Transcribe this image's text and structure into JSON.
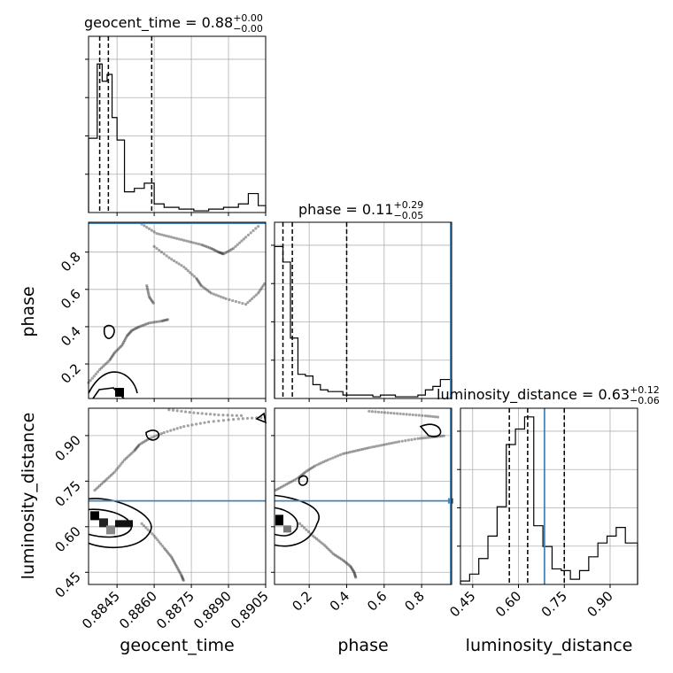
{
  "chart_data": {
    "type": "corner",
    "parameters": [
      "geocent_time",
      "phase",
      "luminosity_distance"
    ],
    "axis_labels": {
      "x": [
        "geocent_time",
        "phase",
        "luminosity_distance"
      ],
      "y": [
        "phase",
        "luminosity_distance"
      ]
    },
    "titles": [
      {
        "text": "geocent_time = 0.88",
        "sup": "+0.00",
        "sub": "−0.00"
      },
      {
        "text": "phase = 0.11",
        "sup": "+0.29",
        "sub": "−0.05"
      },
      {
        "text": "luminosity_distance = 0.63",
        "sup": "+0.12",
        "sub": "−0.06"
      }
    ],
    "ranges": {
      "geocent_time": [
        0.88335,
        0.8905
      ],
      "phase": [
        0.015,
        0.96
      ],
      "luminosity_distance": [
        0.41,
        0.99
      ]
    },
    "ticks": {
      "geocent_time": {
        "values": [
          0.8845,
          0.886,
          0.8875,
          0.889,
          0.8905
        ],
        "labels": [
          "0.8845",
          "0.8860",
          "0.8875",
          "0.8890",
          "0.8905"
        ]
      },
      "phase": {
        "values": [
          0.2,
          0.4,
          0.6,
          0.8
        ],
        "labels": [
          "0.2",
          "0.4",
          "0.6",
          "0.8"
        ]
      },
      "luminosity_distance": {
        "values": [
          0.45,
          0.6,
          0.75,
          0.9
        ],
        "labels": [
          "0.45",
          "0.60",
          "0.75",
          "0.90"
        ]
      }
    },
    "truths": {
      "geocent_time": null,
      "phase": 0.955,
      "luminosity_distance": 0.685
    },
    "quantiles": {
      "geocent_time": [
        0.8838,
        0.88415,
        0.8859
      ],
      "phase": [
        0.06,
        0.11,
        0.4
      ],
      "luminosity_distance": [
        0.57,
        0.63,
        0.75
      ]
    },
    "histograms": {
      "geocent_time": {
        "edges": [
          0.88335,
          0.8837,
          0.8839,
          0.8841,
          0.8843,
          0.8845,
          0.8848,
          0.8852,
          0.8856,
          0.886,
          0.8864,
          0.887,
          0.8876,
          0.8882,
          0.8888,
          0.8894,
          0.8898,
          0.8902,
          0.8905
        ],
        "counts": [
          0.43,
          0.86,
          0.76,
          0.8,
          0.55,
          0.42,
          0.12,
          0.14,
          0.17,
          0.05,
          0.03,
          0.02,
          0.01,
          0.02,
          0.03,
          0.05,
          0.11,
          0.04
        ]
      },
      "phase": {
        "edges": [
          0.015,
          0.06,
          0.1,
          0.14,
          0.18,
          0.22,
          0.26,
          0.3,
          0.34,
          0.38,
          0.42,
          0.46,
          0.5,
          0.54,
          0.58,
          0.62,
          0.66,
          0.7,
          0.74,
          0.78,
          0.82,
          0.86,
          0.9,
          0.96
        ],
        "counts": [
          0.88,
          0.79,
          0.35,
          0.14,
          0.13,
          0.08,
          0.05,
          0.04,
          0.04,
          0.02,
          0.02,
          0.02,
          0.02,
          0.01,
          0.02,
          0.02,
          0.01,
          0.01,
          0.01,
          0.02,
          0.05,
          0.07,
          0.11
        ]
      },
      "luminosity_distance": {
        "edges": [
          0.41,
          0.44,
          0.47,
          0.5,
          0.53,
          0.56,
          0.59,
          0.62,
          0.65,
          0.68,
          0.71,
          0.74,
          0.77,
          0.8,
          0.83,
          0.86,
          0.89,
          0.92,
          0.95,
          0.99
        ],
        "counts": [
          0.02,
          0.06,
          0.15,
          0.28,
          0.45,
          0.81,
          0.9,
          0.97,
          0.34,
          0.22,
          0.09,
          0.08,
          0.03,
          0.08,
          0.16,
          0.24,
          0.28,
          0.33,
          0.24
        ]
      }
    },
    "scatter_paths": [
      {
        "panel": "geocent_time-phase",
        "points": [
          [
            0.88335,
            0.1
          ],
          [
            0.8838,
            0.17
          ],
          [
            0.8842,
            0.22
          ],
          [
            0.8844,
            0.26
          ],
          [
            0.8847,
            0.3
          ],
          [
            0.8849,
            0.35
          ],
          [
            0.8851,
            0.38
          ],
          [
            0.8854,
            0.4
          ],
          [
            0.8858,
            0.42
          ],
          [
            0.8863,
            0.43
          ],
          [
            0.8866,
            0.44
          ]
        ]
      },
      {
        "panel": "geocent_time-phase",
        "points": [
          [
            0.8855,
            0.95
          ],
          [
            0.8861,
            0.9
          ],
          [
            0.8867,
            0.88
          ],
          [
            0.8873,
            0.86
          ],
          [
            0.8879,
            0.84
          ],
          [
            0.8883,
            0.82
          ],
          [
            0.8886,
            0.8
          ],
          [
            0.8888,
            0.79
          ],
          [
            0.8892,
            0.82
          ],
          [
            0.8897,
            0.88
          ],
          [
            0.8903,
            0.95
          ]
        ]
      },
      {
        "panel": "geocent_time-phase",
        "points": [
          [
            0.8857,
            0.62
          ],
          [
            0.8858,
            0.56
          ],
          [
            0.886,
            0.52
          ]
        ]
      },
      {
        "panel": "geocent_time-phase",
        "points": [
          [
            0.886,
            0.83
          ],
          [
            0.8866,
            0.77
          ],
          [
            0.8872,
            0.72
          ],
          [
            0.8877,
            0.66
          ],
          [
            0.8879,
            0.62
          ],
          [
            0.8883,
            0.58
          ],
          [
            0.8889,
            0.55
          ],
          [
            0.8897,
            0.52
          ],
          [
            0.8902,
            0.58
          ],
          [
            0.8905,
            0.64
          ]
        ]
      },
      {
        "panel": "geocent_time-luminosity_distance",
        "points": [
          [
            0.8836,
            0.72
          ],
          [
            0.884,
            0.75
          ],
          [
            0.8844,
            0.78
          ],
          [
            0.8848,
            0.82
          ],
          [
            0.8852,
            0.85
          ],
          [
            0.8854,
            0.87
          ],
          [
            0.8858,
            0.89
          ],
          [
            0.8864,
            0.91
          ],
          [
            0.8872,
            0.93
          ],
          [
            0.8882,
            0.945
          ],
          [
            0.8894,
            0.955
          ],
          [
            0.8905,
            0.96
          ]
        ]
      },
      {
        "panel": "geocent_time-luminosity_distance",
        "points": [
          [
            0.8855,
            0.61
          ],
          [
            0.886,
            0.57
          ],
          [
            0.8864,
            0.53
          ],
          [
            0.8867,
            0.5
          ],
          [
            0.8869,
            0.47
          ],
          [
            0.8871,
            0.44
          ],
          [
            0.8872,
            0.42
          ]
        ]
      },
      {
        "panel": "geocent_time-luminosity_distance",
        "points": [
          [
            0.8866,
            0.985
          ],
          [
            0.8876,
            0.975
          ],
          [
            0.8886,
            0.968
          ],
          [
            0.8897,
            0.965
          ]
        ]
      },
      {
        "panel": "phase-luminosity_distance",
        "points": [
          [
            0.02,
            0.72
          ],
          [
            0.08,
            0.74
          ],
          [
            0.14,
            0.76
          ],
          [
            0.18,
            0.78
          ],
          [
            0.23,
            0.8
          ],
          [
            0.3,
            0.82
          ],
          [
            0.38,
            0.84
          ],
          [
            0.45,
            0.85
          ],
          [
            0.52,
            0.86
          ],
          [
            0.6,
            0.87
          ],
          [
            0.68,
            0.88
          ],
          [
            0.78,
            0.89
          ],
          [
            0.86,
            0.895
          ],
          [
            0.93,
            0.9
          ]
        ]
      },
      {
        "panel": "phase-luminosity_distance",
        "points": [
          [
            0.15,
            0.61
          ],
          [
            0.22,
            0.57
          ],
          [
            0.28,
            0.54
          ],
          [
            0.33,
            0.51
          ],
          [
            0.38,
            0.49
          ],
          [
            0.42,
            0.47
          ],
          [
            0.44,
            0.45
          ],
          [
            0.45,
            0.43
          ]
        ]
      },
      {
        "panel": "phase-luminosity_distance",
        "points": [
          [
            0.52,
            0.98
          ],
          [
            0.62,
            0.975
          ],
          [
            0.72,
            0.97
          ],
          [
            0.82,
            0.965
          ],
          [
            0.9,
            0.96
          ]
        ]
      }
    ],
    "grid": true,
    "legend": "none"
  }
}
